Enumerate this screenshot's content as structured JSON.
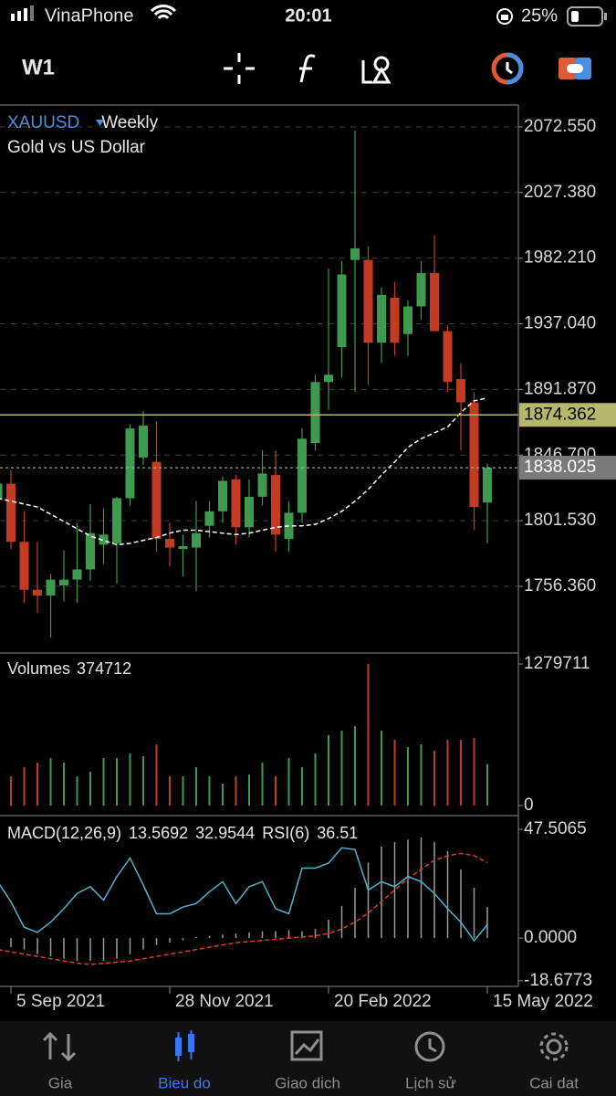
{
  "status_bar": {
    "carrier": "VinaPhone",
    "time": "20:01",
    "battery": "25%"
  },
  "toolbar": {
    "timeframe": "W1"
  },
  "chart_data": [
    {
      "type": "candlestick",
      "symbol": "XAUUSD",
      "timeframe": "Weekly",
      "description": "Gold vs US Dollar",
      "categories": [
        null,
        "5 Sep 2021",
        null,
        null,
        null,
        null,
        null,
        null,
        null,
        null,
        null,
        null,
        null,
        "28 Nov 2021",
        null,
        null,
        null,
        null,
        null,
        null,
        null,
        null,
        null,
        null,
        null,
        "20 Feb 2022",
        null,
        null,
        null,
        null,
        null,
        null,
        null,
        null,
        null,
        null,
        null,
        "15 May 2022"
      ],
      "open": [
        1817,
        1827,
        1787,
        1754,
        1750,
        1757,
        1761,
        1768,
        1785,
        1786,
        1817,
        1845,
        1842,
        1789,
        1782,
        1783,
        1798,
        1808,
        1830,
        1797,
        1818,
        1833,
        1789,
        1807,
        1855,
        1897,
        1921,
        1981,
        1981,
        1924,
        1955,
        1930,
        1949,
        1972,
        1932,
        1899,
        1883,
        1814
      ],
      "high": [
        1834,
        1836,
        1808,
        1787,
        1765,
        1781,
        1800,
        1813,
        1810,
        1818,
        1868,
        1877,
        1870,
        1800,
        1792,
        1815,
        1815,
        1832,
        1833,
        1830,
        1850,
        1850,
        1815,
        1865,
        1902,
        1975,
        1980,
        2070,
        1990,
        1962,
        1966,
        1953,
        1980,
        1998,
        1936,
        1910,
        1890,
        1841
      ],
      "low": [
        1808,
        1782,
        1745,
        1738,
        1721,
        1746,
        1745,
        1760,
        1772,
        1758,
        1812,
        1840,
        1780,
        1770,
        1763,
        1753,
        1790,
        1800,
        1785,
        1790,
        1812,
        1780,
        1780,
        1800,
        1850,
        1878,
        1900,
        1890,
        1895,
        1910,
        1915,
        1915,
        1940,
        1935,
        1890,
        1850,
        1795,
        1786
      ],
      "close": [
        1827,
        1787,
        1754,
        1750,
        1761,
        1761,
        1768,
        1793,
        1792,
        1817,
        1865,
        1867,
        1789,
        1783,
        1784,
        1793,
        1808,
        1829,
        1797,
        1818,
        1834,
        1792,
        1807,
        1858,
        1897,
        1902,
        1971,
        1989,
        1924,
        1957,
        1924,
        1949,
        1972,
        1932,
        1897,
        1883,
        1811,
        1838.025
      ],
      "up_color": "#3d9a4f",
      "down_color": "#c23b22",
      "series": [
        {
          "color": "#ffffff",
          "values": [
            1817,
            1815,
            1813,
            1811,
            1806,
            1801,
            1796,
            1791,
            1788,
            1785,
            1786,
            1788,
            1790,
            1793,
            1795,
            1795,
            1794,
            1793,
            1792,
            1793,
            1795,
            1797,
            1798,
            1798,
            1799,
            1803,
            1808,
            1815,
            1823,
            1833,
            1842,
            1852,
            1858,
            1862,
            1866,
            1876,
            1884,
            1886
          ]
        }
      ],
      "level": 1874.362,
      "level_color": "#b5b86a",
      "ylim": [
        1711.1,
        2087.6
      ],
      "yticks": [
        {
          "value": 2072.55,
          "label": "2072.550"
        },
        {
          "value": 2027.38,
          "label": "2027.380"
        },
        {
          "value": 1982.21,
          "label": "1982.210"
        },
        {
          "value": 1937.04,
          "label": "1937.040"
        },
        {
          "value": 1891.87,
          "label": "1891.870"
        },
        {
          "value": 1846.7,
          "label": "1846.700"
        },
        {
          "value": 1801.53,
          "label": "1801.530"
        },
        {
          "value": 1756.36,
          "label": "1756.360"
        }
      ],
      "grid": true
    },
    {
      "type": "bar",
      "title": "Volumes",
      "values": [
        264000,
        264000,
        347000,
        388000,
        429000,
        388000,
        264000,
        306000,
        429000,
        429000,
        471000,
        446000,
        553000,
        264000,
        264000,
        347000,
        264000,
        198000,
        264000,
        281000,
        388000,
        264000,
        429000,
        347000,
        471000,
        636000,
        677000,
        718000,
        1279711,
        677000,
        594000,
        528000,
        553000,
        495000,
        594000,
        594000,
        611000,
        374712
      ],
      "ylim": [
        -82600,
        1370500
      ],
      "yticks": [
        1279711,
        0
      ]
    },
    {
      "type": "macd",
      "title": "MACD(12,26,9)",
      "histogram": {
        "color": "#9a9a9a",
        "values": [
          -3,
          -4,
          -5,
          -7,
          -8,
          -9,
          -10,
          -10,
          -10,
          -9,
          -7,
          -5,
          -3,
          -2,
          -1,
          0.5,
          1,
          1.5,
          2,
          2.5,
          3,
          3,
          3.5,
          3,
          4,
          8,
          14,
          22,
          33,
          40,
          42,
          43,
          44,
          42,
          38,
          30,
          22,
          13.5692
        ]
      },
      "signal": {
        "color": "#e0392b",
        "values": [
          -5,
          -6,
          -7,
          -8,
          -9,
          -10,
          -11,
          -11.5,
          -11,
          -10.5,
          -10,
          -9,
          -8,
          -7,
          -6,
          -5,
          -4,
          -3,
          -2,
          -1.5,
          -1,
          -0.5,
          0,
          0.5,
          1,
          2,
          4,
          7,
          11,
          16,
          21,
          26,
          30,
          34,
          36,
          37,
          36,
          32.9544
        ]
      },
      "rsi": {
        "label": "RSI(6)",
        "color": "#4fb3cf",
        "values": [
          62,
          50,
          35,
          32,
          38,
          46,
          55,
          59,
          51,
          65,
          76,
          60,
          43,
          43,
          47,
          49,
          56,
          62,
          49,
          59,
          62,
          46,
          43,
          70,
          70,
          73,
          82,
          81,
          57,
          62,
          59,
          65,
          62,
          55,
          46,
          38,
          27,
          36.51
        ]
      },
      "ylim": [
        -21.1,
        52.7
      ],
      "yticks": [
        47.5065,
        {
          "value": 0,
          "label": "0.0000"
        },
        -18.6773
      ],
      "y2lim": [
        0,
        100
      ]
    }
  ],
  "nav": {
    "items": [
      "Gia",
      "Bieu do",
      "Giao dich",
      "Lịch sử",
      "Cai dat"
    ],
    "active": 1
  }
}
